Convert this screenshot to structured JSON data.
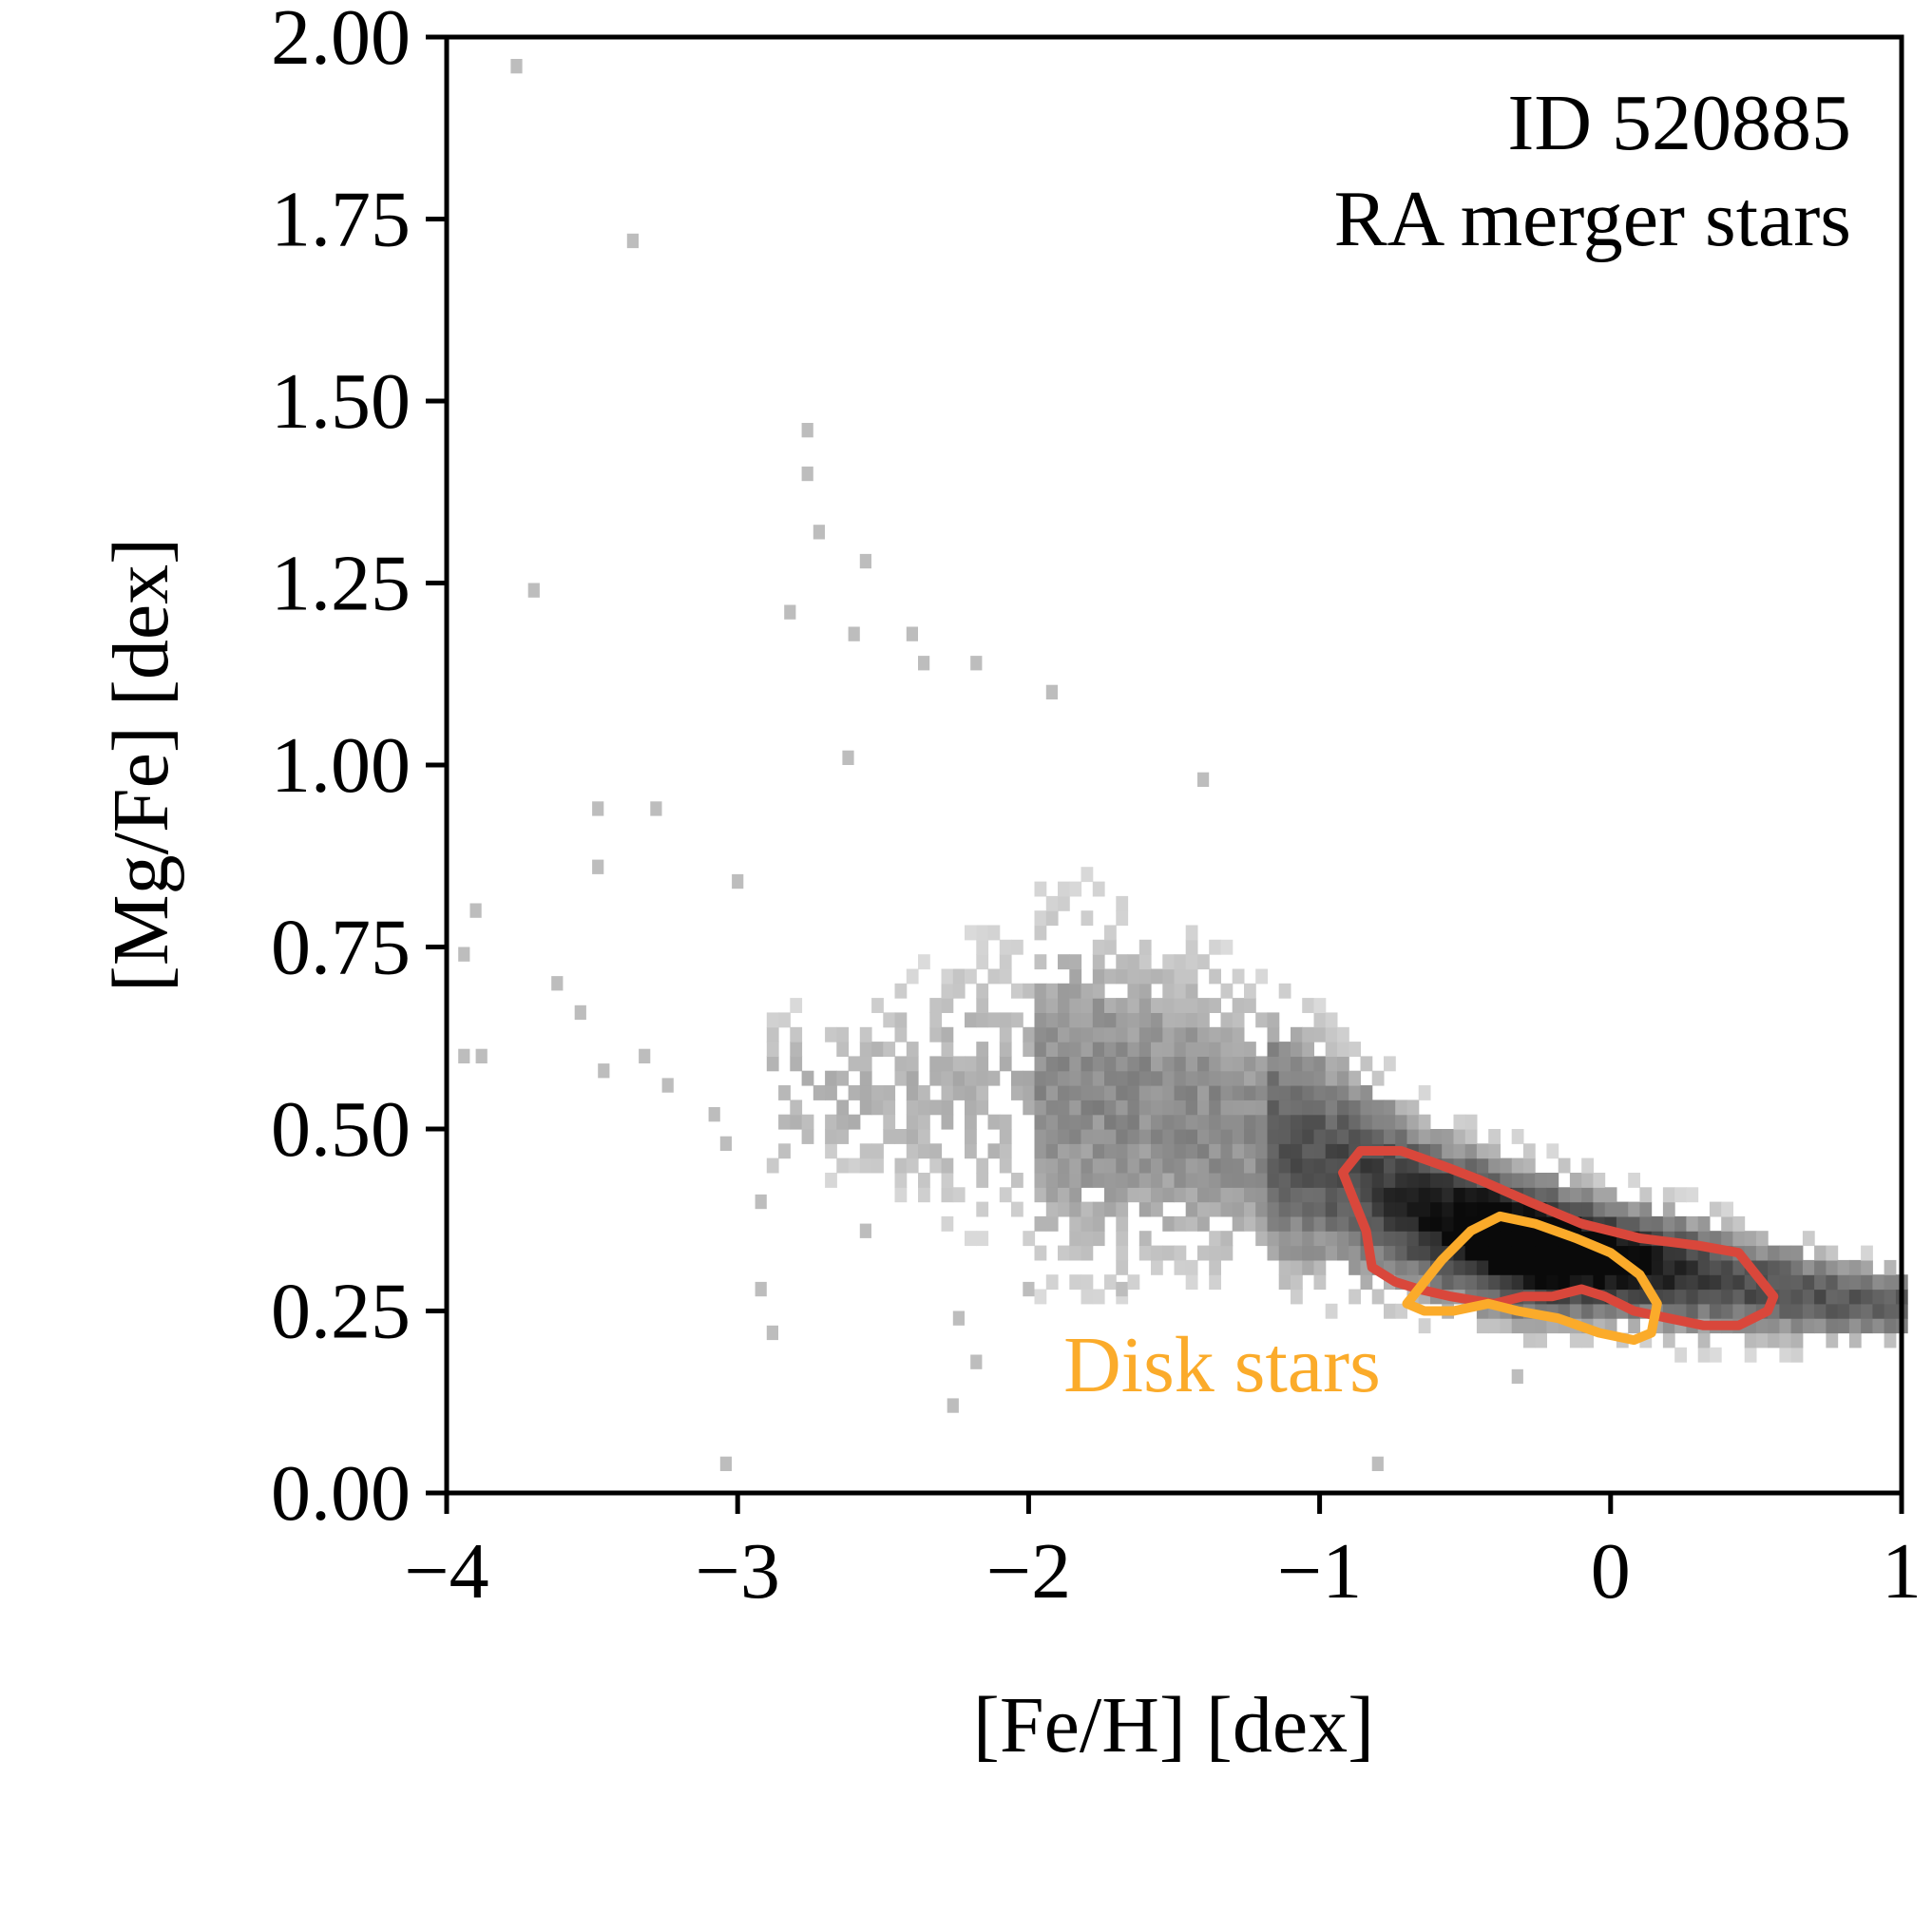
{
  "chart_data": {
    "type": "heatmap",
    "title": "",
    "xlabel": "[Fe/H] [dex]",
    "ylabel": "[Mg/Fe] [dex]",
    "xlim": [
      -4,
      1
    ],
    "ylim": [
      0,
      2
    ],
    "xticks": [
      -4,
      -3,
      -2,
      -1,
      0,
      1
    ],
    "xtick_labels": [
      "−4",
      "−3",
      "−2",
      "−1",
      "0",
      "1"
    ],
    "yticks": [
      0,
      0.25,
      0.5,
      0.75,
      1.0,
      1.25,
      1.5,
      1.75,
      2.0
    ],
    "ytick_labels": [
      "0.00",
      "0.25",
      "0.50",
      "0.75",
      "1.00",
      "1.25",
      "1.50",
      "1.75",
      "2.00"
    ],
    "grid": false,
    "colormap": "greys",
    "annotations": [
      {
        "text": "ID 520885",
        "placement": "top-right"
      },
      {
        "text": "RA merger stars",
        "placement": "top-right"
      }
    ],
    "ridge": [
      {
        "x": -2.6,
        "y": 0.55,
        "spread": 0.08
      },
      {
        "x": -2.2,
        "y": 0.56,
        "spread": 0.14
      },
      {
        "x": -1.8,
        "y": 0.55,
        "spread": 0.16
      },
      {
        "x": -1.4,
        "y": 0.52,
        "spread": 0.14
      },
      {
        "x": -1.0,
        "y": 0.46,
        "spread": 0.1
      },
      {
        "x": -0.6,
        "y": 0.38,
        "spread": 0.07
      },
      {
        "x": -0.3,
        "y": 0.34,
        "spread": 0.06
      },
      {
        "x": 0.0,
        "y": 0.32,
        "spread": 0.05
      },
      {
        "x": 0.3,
        "y": 0.3,
        "spread": 0.05
      },
      {
        "x": 0.7,
        "y": 0.27,
        "spread": 0.04
      },
      {
        "x": 1.0,
        "y": 0.26,
        "spread": 0.03
      }
    ],
    "outliers": [
      {
        "x": -3.78,
        "y": 1.95
      },
      {
        "x": -3.38,
        "y": 1.71
      },
      {
        "x": -3.72,
        "y": 1.23
      },
      {
        "x": -2.78,
        "y": 1.45
      },
      {
        "x": -2.78,
        "y": 1.39
      },
      {
        "x": -2.74,
        "y": 1.31
      },
      {
        "x": -2.58,
        "y": 1.27
      },
      {
        "x": -2.84,
        "y": 1.2
      },
      {
        "x": -2.62,
        "y": 1.17
      },
      {
        "x": -2.42,
        "y": 1.17
      },
      {
        "x": -2.38,
        "y": 1.13
      },
      {
        "x": -2.2,
        "y": 1.13
      },
      {
        "x": -1.94,
        "y": 1.09
      },
      {
        "x": -2.64,
        "y": 1.0
      },
      {
        "x": -1.42,
        "y": 0.97
      },
      {
        "x": -3.5,
        "y": 0.93
      },
      {
        "x": -3.3,
        "y": 0.93
      },
      {
        "x": -3.5,
        "y": 0.85
      },
      {
        "x": -3.02,
        "y": 0.83
      },
      {
        "x": -3.92,
        "y": 0.79
      },
      {
        "x": -3.96,
        "y": 0.73
      },
      {
        "x": -3.64,
        "y": 0.69
      },
      {
        "x": -3.56,
        "y": 0.65
      },
      {
        "x": -3.96,
        "y": 0.59
      },
      {
        "x": -3.9,
        "y": 0.59
      },
      {
        "x": -3.34,
        "y": 0.59
      },
      {
        "x": -3.48,
        "y": 0.57
      },
      {
        "x": -3.26,
        "y": 0.55
      },
      {
        "x": -3.1,
        "y": 0.51
      },
      {
        "x": -3.06,
        "y": 0.47
      },
      {
        "x": -2.94,
        "y": 0.39
      },
      {
        "x": -2.58,
        "y": 0.35
      },
      {
        "x": -2.94,
        "y": 0.27
      },
      {
        "x": -2.9,
        "y": 0.21
      },
      {
        "x": -2.26,
        "y": 0.23
      },
      {
        "x": -2.2,
        "y": 0.17
      },
      {
        "x": -2.28,
        "y": 0.11
      },
      {
        "x": -3.06,
        "y": 0.03
      },
      {
        "x": -0.82,
        "y": 0.03
      },
      {
        "x": -1.7,
        "y": 0.27
      },
      {
        "x": -2.02,
        "y": 0.27
      },
      {
        "x": -0.34,
        "y": 0.15
      }
    ],
    "series": [
      {
        "name": "RA merger stars",
        "kind": "contour",
        "color": "#d9473b",
        "x": [
          -0.92,
          -0.86,
          -0.72,
          -0.58,
          -0.45,
          -0.28,
          -0.1,
          0.1,
          0.3,
          0.44,
          0.5,
          0.56,
          0.54,
          0.44,
          0.32,
          0.2,
          0.08,
          -0.02,
          -0.1,
          -0.2,
          -0.3,
          -0.4,
          -0.55,
          -0.66,
          -0.74,
          -0.82,
          -0.84,
          -0.88,
          -0.92
        ],
        "y": [
          0.44,
          0.47,
          0.47,
          0.45,
          0.43,
          0.4,
          0.37,
          0.35,
          0.34,
          0.33,
          0.3,
          0.27,
          0.25,
          0.23,
          0.23,
          0.24,
          0.25,
          0.27,
          0.28,
          0.27,
          0.27,
          0.26,
          0.27,
          0.28,
          0.29,
          0.31,
          0.36,
          0.4,
          0.44
        ]
      },
      {
        "name": "Disk stars",
        "kind": "contour",
        "color": "#fbab2a",
        "x": [
          -0.68,
          -0.58,
          -0.48,
          -0.38,
          -0.26,
          -0.12,
          0.0,
          0.1,
          0.16,
          0.14,
          0.08,
          -0.04,
          -0.18,
          -0.32,
          -0.42,
          -0.54,
          -0.64,
          -0.7,
          -0.68
        ],
        "y": [
          0.27,
          0.32,
          0.36,
          0.38,
          0.37,
          0.35,
          0.33,
          0.3,
          0.26,
          0.22,
          0.21,
          0.22,
          0.24,
          0.25,
          0.26,
          0.25,
          0.25,
          0.26,
          0.27
        ]
      }
    ],
    "series_labels": [
      {
        "text": "Disk stars",
        "color": "#fbab2a",
        "x": -1.88,
        "y": 0.14
      }
    ]
  }
}
